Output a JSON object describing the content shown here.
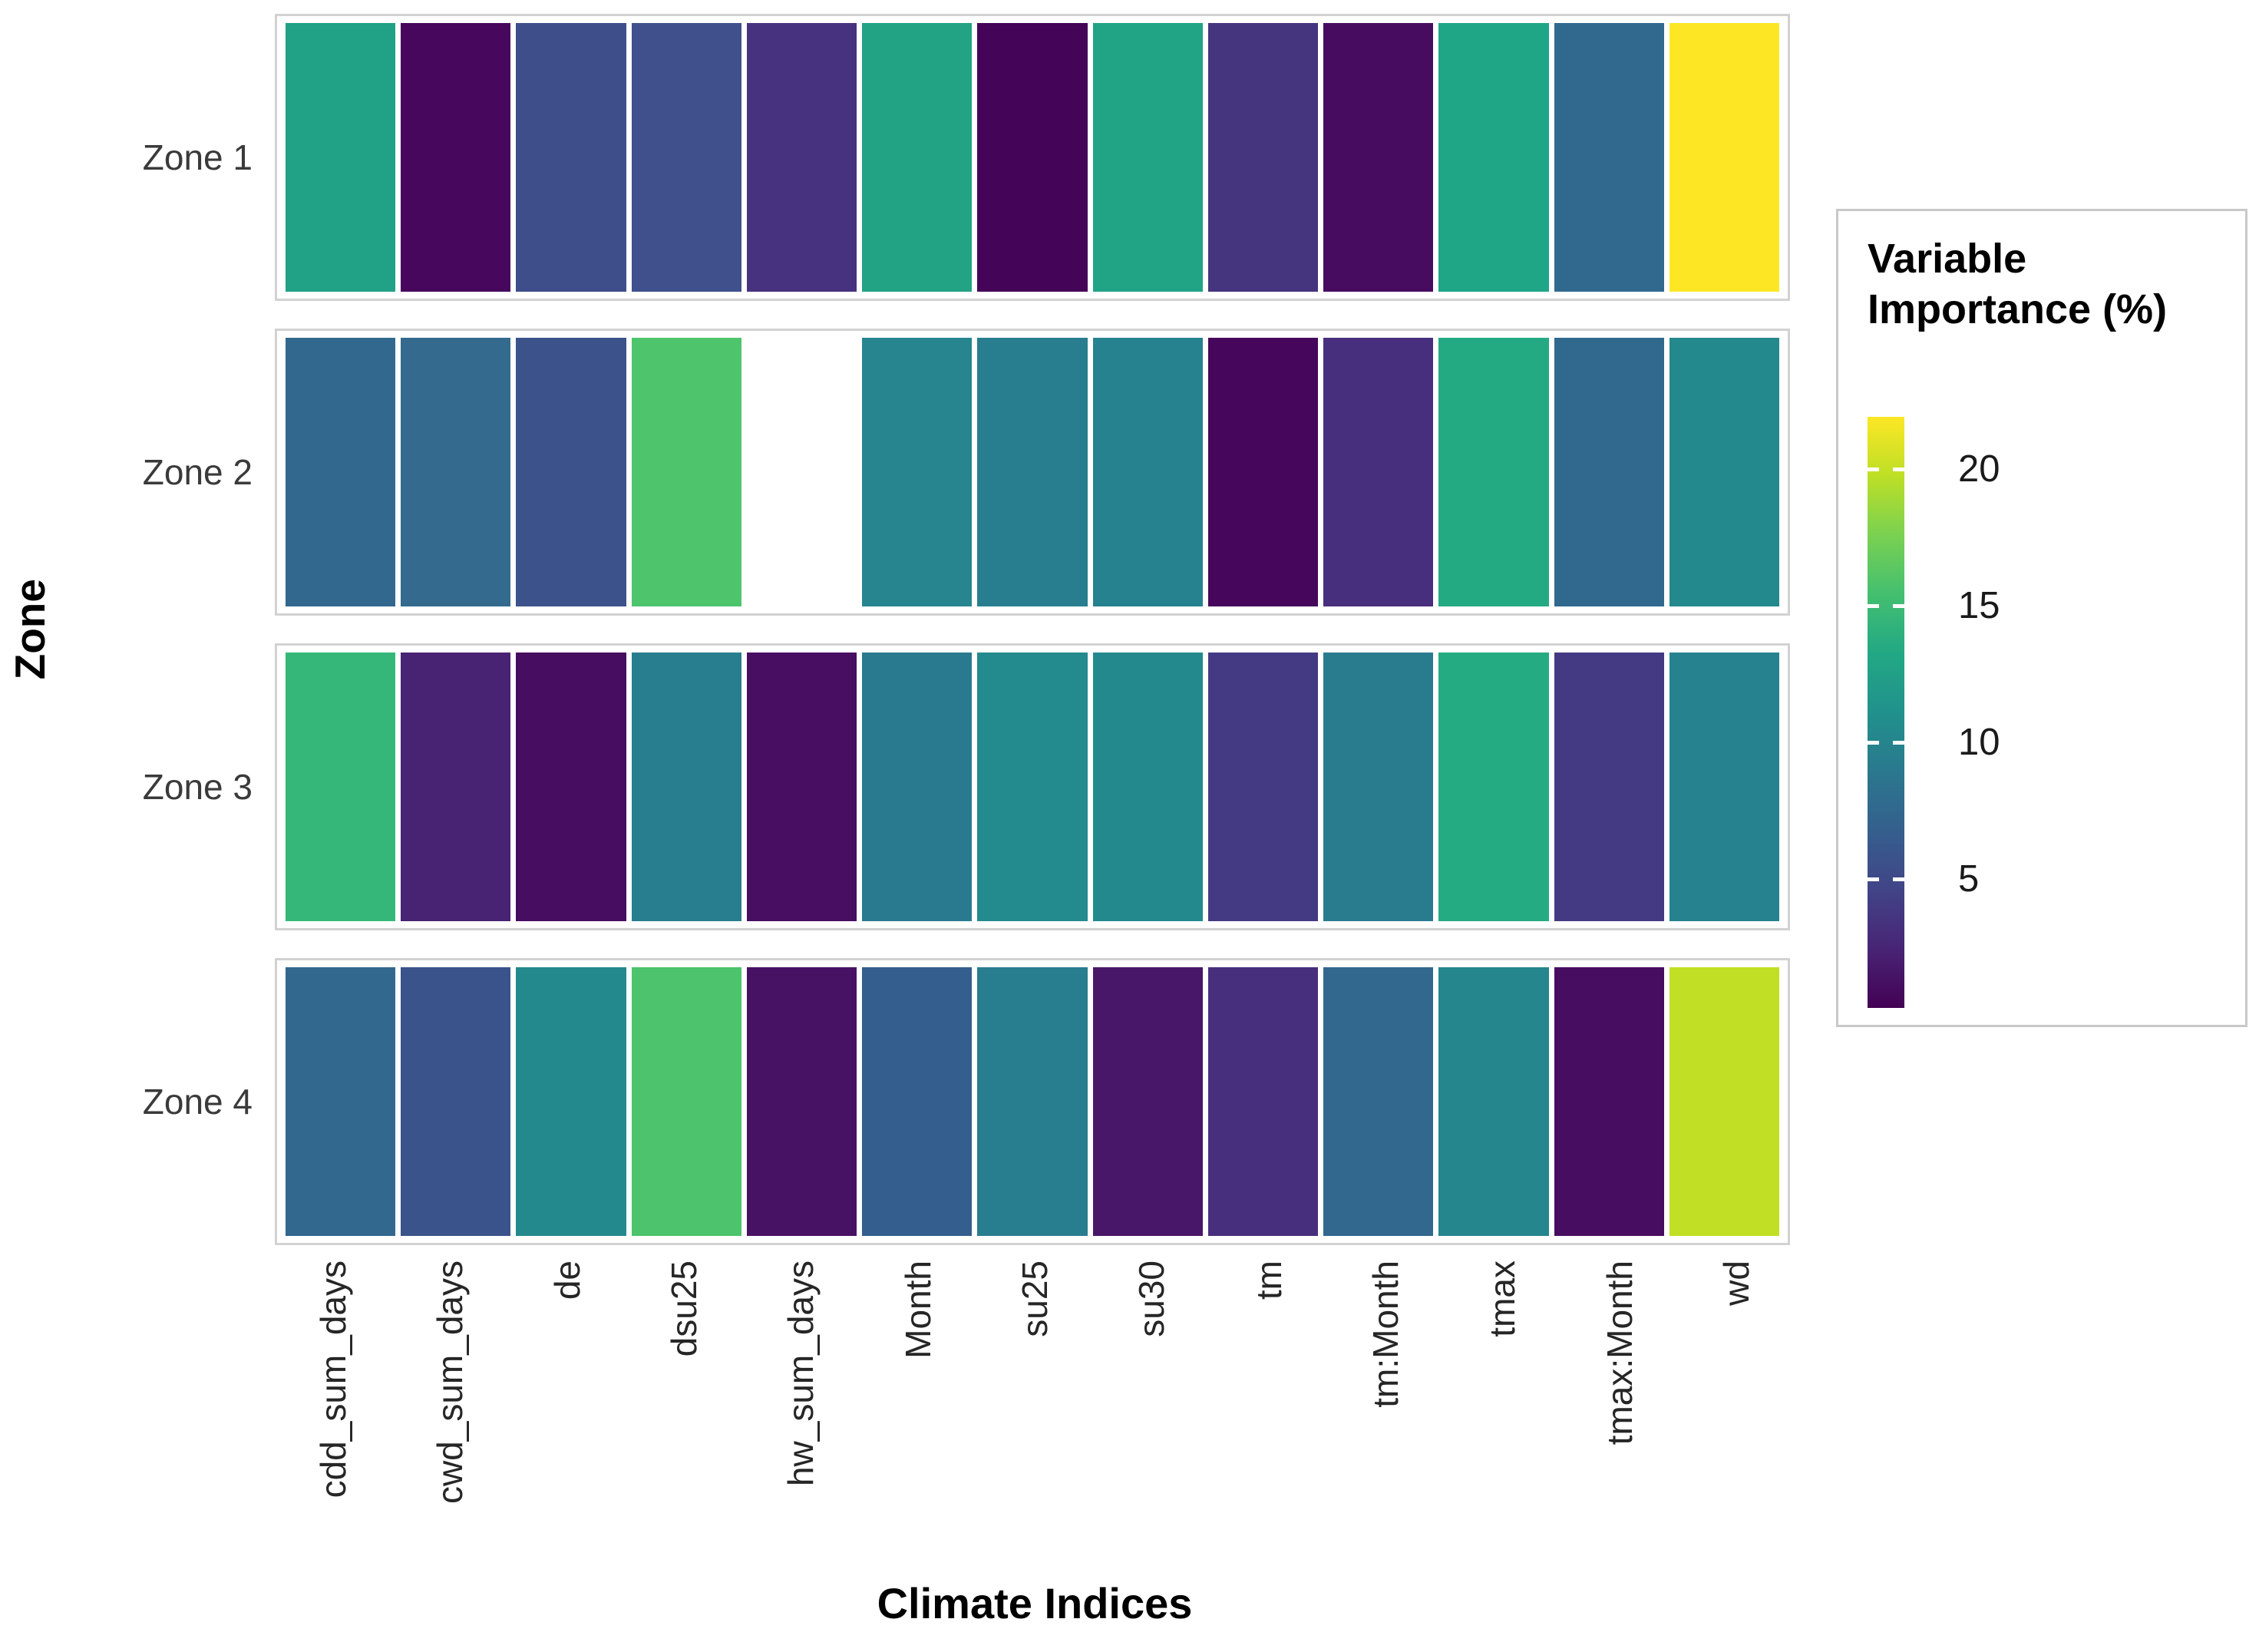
{
  "axes": {
    "x_title": "Climate Indices",
    "y_title": "Zone"
  },
  "legend": {
    "title_line1": "Variable",
    "title_line2": "Importance (%)",
    "ticks": [
      20,
      15,
      10,
      5
    ],
    "limits": [
      0.3,
      21.9
    ],
    "gradient_stops": [
      "#440154",
      "#482475",
      "#414487",
      "#355f8d",
      "#2a788e",
      "#21918c",
      "#22a884",
      "#44bf70",
      "#7ad151",
      "#bddf26",
      "#fde725"
    ],
    "na_color": "#ffffff"
  },
  "chart_data": {
    "type": "heatmap",
    "title": "",
    "xlabel": "Climate Indices",
    "ylabel": "Zone",
    "colorbar_label": "Variable Importance (%)",
    "color_scale": "viridis",
    "color_limits": [
      0.3,
      21.9
    ],
    "x_categories": [
      "cdd_sum_days",
      "cwd_sum_days",
      "de",
      "dsu25",
      "hw_sum_days",
      "Month",
      "su25",
      "su30",
      "tm",
      "tm:Month",
      "tmax",
      "tmax:Month",
      "wd"
    ],
    "y_categories": [
      "Zone 1",
      "Zone 2",
      "Zone 3",
      "Zone 4"
    ],
    "missing_cells": [
      {
        "zone": "Zone 2",
        "x": "hw_sum_days"
      }
    ],
    "rows": [
      {
        "zone": "Zone 1",
        "values": [
          12.5,
          1.6,
          5.2,
          5.2,
          3.6,
          12.3,
          1.0,
          12.4,
          3.8,
          1.8,
          12.8,
          7.5,
          21.9
        ],
        "colors": [
          "#21a185",
          "#46075c",
          "#3e4e8a",
          "#3f508c",
          "#46327e",
          "#22a384",
          "#440458",
          "#21a386",
          "#45347e",
          "#470c60",
          "#1fa687",
          "#31688e",
          "#fde725"
        ]
      },
      {
        "zone": "Zone 2",
        "values": [
          7.4,
          7.2,
          5.8,
          16.4,
          null,
          10.2,
          9.6,
          10.0,
          1.1,
          3.4,
          13.2,
          7.5,
          10.6
        ],
        "colors": [
          "#32688e",
          "#336a8e",
          "#3b528b",
          "#4ec46d",
          "#ffffff",
          "#26858e",
          "#287e8e",
          "#26828e",
          "#45065b",
          "#472f7e",
          "#24aa83",
          "#31688e",
          "#24898d"
        ]
      },
      {
        "zone": "Zone 3",
        "values": [
          15.0,
          3.0,
          1.8,
          9.6,
          1.9,
          9.2,
          10.8,
          10.6,
          4.0,
          9.3,
          13.0,
          4.0,
          10.0
        ],
        "colors": [
          "#35b779",
          "#482273",
          "#470d60",
          "#287e8e",
          "#470e61",
          "#297a8e",
          "#238a8d",
          "#24898d",
          "#443a83",
          "#287c8e",
          "#25ab82",
          "#443a83",
          "#26828e"
        ]
      },
      {
        "zone": "Zone 4",
        "values": [
          7.4,
          6.0,
          10.6,
          16.2,
          2.0,
          6.8,
          9.7,
          2.2,
          3.3,
          7.3,
          10.4,
          1.8,
          19.9
        ],
        "colors": [
          "#32688e",
          "#3a538b",
          "#24898d",
          "#4cc36c",
          "#471164",
          "#345e8d",
          "#287d8e",
          "#481769",
          "#472f7d",
          "#32688e",
          "#25868d",
          "#470d60",
          "#c0df25"
        ]
      }
    ]
  }
}
